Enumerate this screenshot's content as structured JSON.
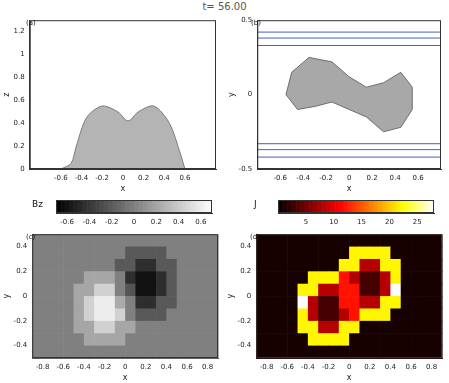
{
  "title": "t= 56.00",
  "chart_data": [
    {
      "panel": "(a)",
      "type": "area",
      "xlabel": "x",
      "ylabel": "z",
      "xlim": [
        -0.9,
        0.9
      ],
      "xticks": [
        -0.6,
        -0.4,
        -0.2,
        0,
        0.2,
        0.4,
        0.6
      ],
      "ylim": [
        0,
        1.3
      ],
      "yticks": [
        0,
        0.2,
        0.4,
        0.6,
        0.8,
        1,
        1.2
      ],
      "grid": false,
      "series": [
        {
          "type": "area",
          "color": "#b4b4b4",
          "x": [
            -0.6,
            -0.5,
            -0.45,
            -0.35,
            -0.2,
            -0.05,
            0.05,
            0.15,
            0.3,
            0.45,
            0.55,
            0.6
          ],
          "values": [
            0,
            0.05,
            0.2,
            0.45,
            0.55,
            0.5,
            0.42,
            0.5,
            0.55,
            0.4,
            0.15,
            0
          ]
        }
      ]
    },
    {
      "panel": "(b)",
      "type": "contour",
      "xlabel": "x",
      "ylabel": "y",
      "xlim": [
        -0.8,
        0.8
      ],
      "xticks": [
        -0.6,
        -0.4,
        -0.2,
        0,
        0.2,
        0.4,
        0.6
      ],
      "ylim": [
        -0.5,
        0.5
      ],
      "yticks": [
        -0.5,
        0,
        0.5
      ],
      "grid": false,
      "series": [
        {
          "type": "polygon",
          "color": "#a8a8a8",
          "x": [
            -0.55,
            -0.5,
            -0.35,
            -0.15,
            0,
            0.15,
            0.3,
            0.45,
            0.55,
            0.55,
            0.45,
            0.3,
            0.15,
            0,
            -0.15,
            -0.3,
            -0.45
          ],
          "values": [
            0,
            0.15,
            0.25,
            0.22,
            0.12,
            0.05,
            0.08,
            0.15,
            0.05,
            -0.1,
            -0.22,
            -0.25,
            -0.15,
            -0.1,
            -0.05,
            -0.08,
            -0.1
          ]
        },
        {
          "type": "line",
          "color": "#3050b0",
          "x": [
            -0.8,
            0.8
          ],
          "values": [
            0.42,
            0.42
          ]
        },
        {
          "type": "line",
          "color": "#3050b0",
          "x": [
            -0.8,
            0.8
          ],
          "values": [
            0.38,
            0.38
          ]
        },
        {
          "type": "line",
          "color": "#3050b0",
          "x": [
            -0.8,
            0.8
          ],
          "values": [
            0.33,
            0.33
          ]
        },
        {
          "type": "line",
          "color": "#3050b0",
          "x": [
            -0.8,
            0.8
          ],
          "values": [
            -0.33,
            -0.33
          ]
        },
        {
          "type": "line",
          "color": "#3050b0",
          "x": [
            -0.8,
            0.8
          ],
          "values": [
            -0.37,
            -0.37
          ]
        },
        {
          "type": "line",
          "color": "#3050b0",
          "x": [
            -0.8,
            0.8
          ],
          "values": [
            -0.42,
            -0.42
          ]
        }
      ]
    },
    {
      "panel": "(c)",
      "type": "heatmap",
      "xlabel": "x",
      "ylabel": "y",
      "color": "gray",
      "xlim": [
        -0.9,
        0.9
      ],
      "xticks": [
        -0.8,
        -0.6,
        -0.4,
        -0.2,
        0,
        0.2,
        0.4,
        0.6,
        0.8
      ],
      "ylim": [
        -0.5,
        0.5
      ],
      "yticks": [
        -0.4,
        -0.2,
        0,
        0.2,
        0.4
      ],
      "grid": false,
      "colorbar": {
        "label": "Bz",
        "range": [
          -0.7,
          0.7
        ],
        "ticks": [
          -0.6,
          -0.4,
          -0.2,
          0,
          0.2,
          0.4,
          0.6
        ]
      },
      "cells": [
        [
          0,
          0,
          0,
          0,
          0,
          0,
          0,
          0,
          0,
          0,
          0,
          0,
          0,
          0,
          0,
          0,
          0,
          0
        ],
        [
          0,
          0,
          0,
          0,
          0,
          0,
          0,
          0,
          0,
          -0.21,
          -0.21,
          -0.21,
          -0.21,
          0,
          0,
          0,
          0,
          0
        ],
        [
          0,
          0,
          0,
          0,
          0,
          0,
          0,
          0,
          -0.21,
          -0.21,
          -0.45,
          -0.45,
          -0.21,
          -0.21,
          0,
          0,
          0,
          0
        ],
        [
          0,
          0,
          0,
          0,
          0,
          0.21,
          0.21,
          0.21,
          0,
          -0.45,
          -0.6,
          -0.6,
          -0.45,
          -0.21,
          0,
          0,
          0,
          0
        ],
        [
          0,
          0,
          0,
          0,
          0.21,
          0.21,
          0.45,
          0.45,
          0,
          -0.24,
          -0.6,
          -0.6,
          -0.45,
          -0.21,
          0,
          0,
          0,
          0
        ],
        [
          0,
          0,
          0,
          0,
          0.21,
          0.45,
          0.6,
          0.6,
          0.24,
          0,
          -0.45,
          -0.45,
          -0.21,
          -0.21,
          0,
          0,
          0,
          0
        ],
        [
          0,
          0,
          0,
          0,
          0.21,
          0.45,
          0.6,
          0.6,
          0.45,
          0,
          -0.21,
          -0.21,
          -0.21,
          0,
          0,
          0,
          0,
          0
        ],
        [
          0,
          0,
          0,
          0,
          0.21,
          0.21,
          0.45,
          0.45,
          0.21,
          0.21,
          0,
          0,
          0,
          0,
          0,
          0,
          0,
          0
        ],
        [
          0,
          0,
          0,
          0,
          0,
          0.21,
          0.21,
          0.21,
          0.21,
          0,
          0,
          0,
          0,
          0,
          0,
          0,
          0,
          0
        ],
        [
          0,
          0,
          0,
          0,
          0,
          0,
          0,
          0,
          0,
          0,
          0,
          0,
          0,
          0,
          0,
          0,
          0,
          0
        ]
      ]
    },
    {
      "panel": "(d)",
      "type": "heatmap",
      "xlabel": "x",
      "ylabel": "y",
      "color": "hot",
      "xlim": [
        -0.9,
        0.9
      ],
      "xticks": [
        -0.8,
        -0.6,
        -0.4,
        -0.2,
        0,
        0.2,
        0.4,
        0.6,
        0.8
      ],
      "ylim": [
        -0.5,
        0.5
      ],
      "yticks": [
        -0.4,
        -0.2,
        0,
        0.2,
        0.4
      ],
      "grid": false,
      "colorbar": {
        "label": "J",
        "range": [
          0,
          28
        ],
        "ticks": [
          5,
          10,
          15,
          20,
          25
        ]
      },
      "cells": [
        [
          1,
          1,
          1,
          1,
          1,
          1,
          1,
          1,
          1,
          1,
          1,
          1,
          1,
          1,
          1,
          1,
          1,
          1
        ],
        [
          1,
          1,
          1,
          1,
          1,
          1,
          1,
          1,
          1,
          22,
          22,
          22,
          22,
          1,
          1,
          1,
          1,
          1
        ],
        [
          1,
          1,
          1,
          1,
          1,
          1,
          1,
          1,
          22,
          22,
          8,
          8,
          22,
          22,
          1,
          1,
          1,
          1
        ],
        [
          1,
          1,
          1,
          1,
          1,
          22,
          22,
          22,
          12,
          8,
          3,
          3,
          8,
          22,
          1,
          1,
          1,
          1
        ],
        [
          1,
          1,
          1,
          1,
          22,
          22,
          8,
          8,
          12,
          12,
          3,
          3,
          8,
          28,
          1,
          1,
          1,
          1
        ],
        [
          1,
          1,
          1,
          1,
          28,
          8,
          3,
          3,
          12,
          12,
          8,
          8,
          22,
          22,
          1,
          1,
          1,
          1
        ],
        [
          1,
          1,
          1,
          1,
          22,
          8,
          3,
          3,
          8,
          12,
          22,
          22,
          22,
          1,
          1,
          1,
          1,
          1
        ],
        [
          1,
          1,
          1,
          1,
          22,
          22,
          8,
          8,
          22,
          22,
          1,
          1,
          1,
          1,
          1,
          1,
          1,
          1
        ],
        [
          1,
          1,
          1,
          1,
          1,
          22,
          22,
          22,
          22,
          1,
          1,
          1,
          1,
          1,
          1,
          1,
          1,
          1
        ],
        [
          1,
          1,
          1,
          1,
          1,
          1,
          1,
          1,
          1,
          1,
          1,
          1,
          1,
          1,
          1,
          1,
          1,
          1
        ]
      ]
    }
  ]
}
